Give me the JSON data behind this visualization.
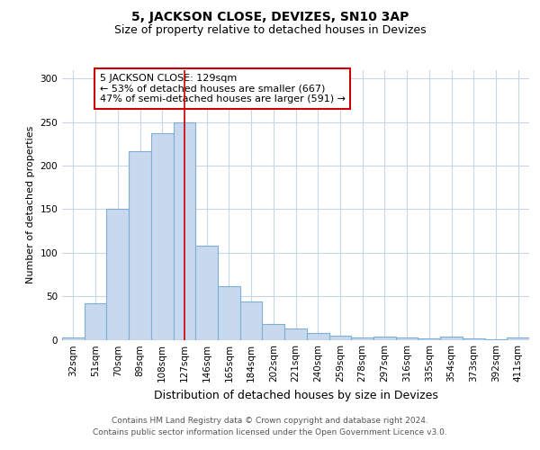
{
  "title": "5, JACKSON CLOSE, DEVIZES, SN10 3AP",
  "subtitle": "Size of property relative to detached houses in Devizes",
  "xlabel": "Distribution of detached houses by size in Devizes",
  "ylabel": "Number of detached properties",
  "categories": [
    "32sqm",
    "51sqm",
    "70sqm",
    "89sqm",
    "108sqm",
    "127sqm",
    "146sqm",
    "165sqm",
    "184sqm",
    "202sqm",
    "221sqm",
    "240sqm",
    "259sqm",
    "278sqm",
    "297sqm",
    "316sqm",
    "335sqm",
    "354sqm",
    "373sqm",
    "392sqm",
    "411sqm"
  ],
  "values": [
    3,
    42,
    150,
    217,
    237,
    250,
    108,
    62,
    44,
    18,
    13,
    8,
    5,
    3,
    4,
    3,
    2,
    4,
    2,
    1,
    3
  ],
  "bar_color": "#c8d9ef",
  "bar_edge_color": "#7bafd4",
  "vline_x_index": 5.0,
  "vline_color": "#cc0000",
  "annotation_text": "5 JACKSON CLOSE: 129sqm\n← 53% of detached houses are smaller (667)\n47% of semi-detached houses are larger (591) →",
  "annotation_box_color": "#ffffff",
  "annotation_box_edge": "#cc0000",
  "ylim": [
    0,
    310
  ],
  "footer_line1": "Contains HM Land Registry data © Crown copyright and database right 2024.",
  "footer_line2": "Contains public sector information licensed under the Open Government Licence v3.0.",
  "background_color": "#ffffff",
  "grid_color": "#c8d4e8",
  "title_fontsize": 10,
  "subtitle_fontsize": 9,
  "xlabel_fontsize": 9,
  "ylabel_fontsize": 8,
  "tick_fontsize": 7.5,
  "annotation_fontsize": 8,
  "footer_fontsize": 6.5
}
